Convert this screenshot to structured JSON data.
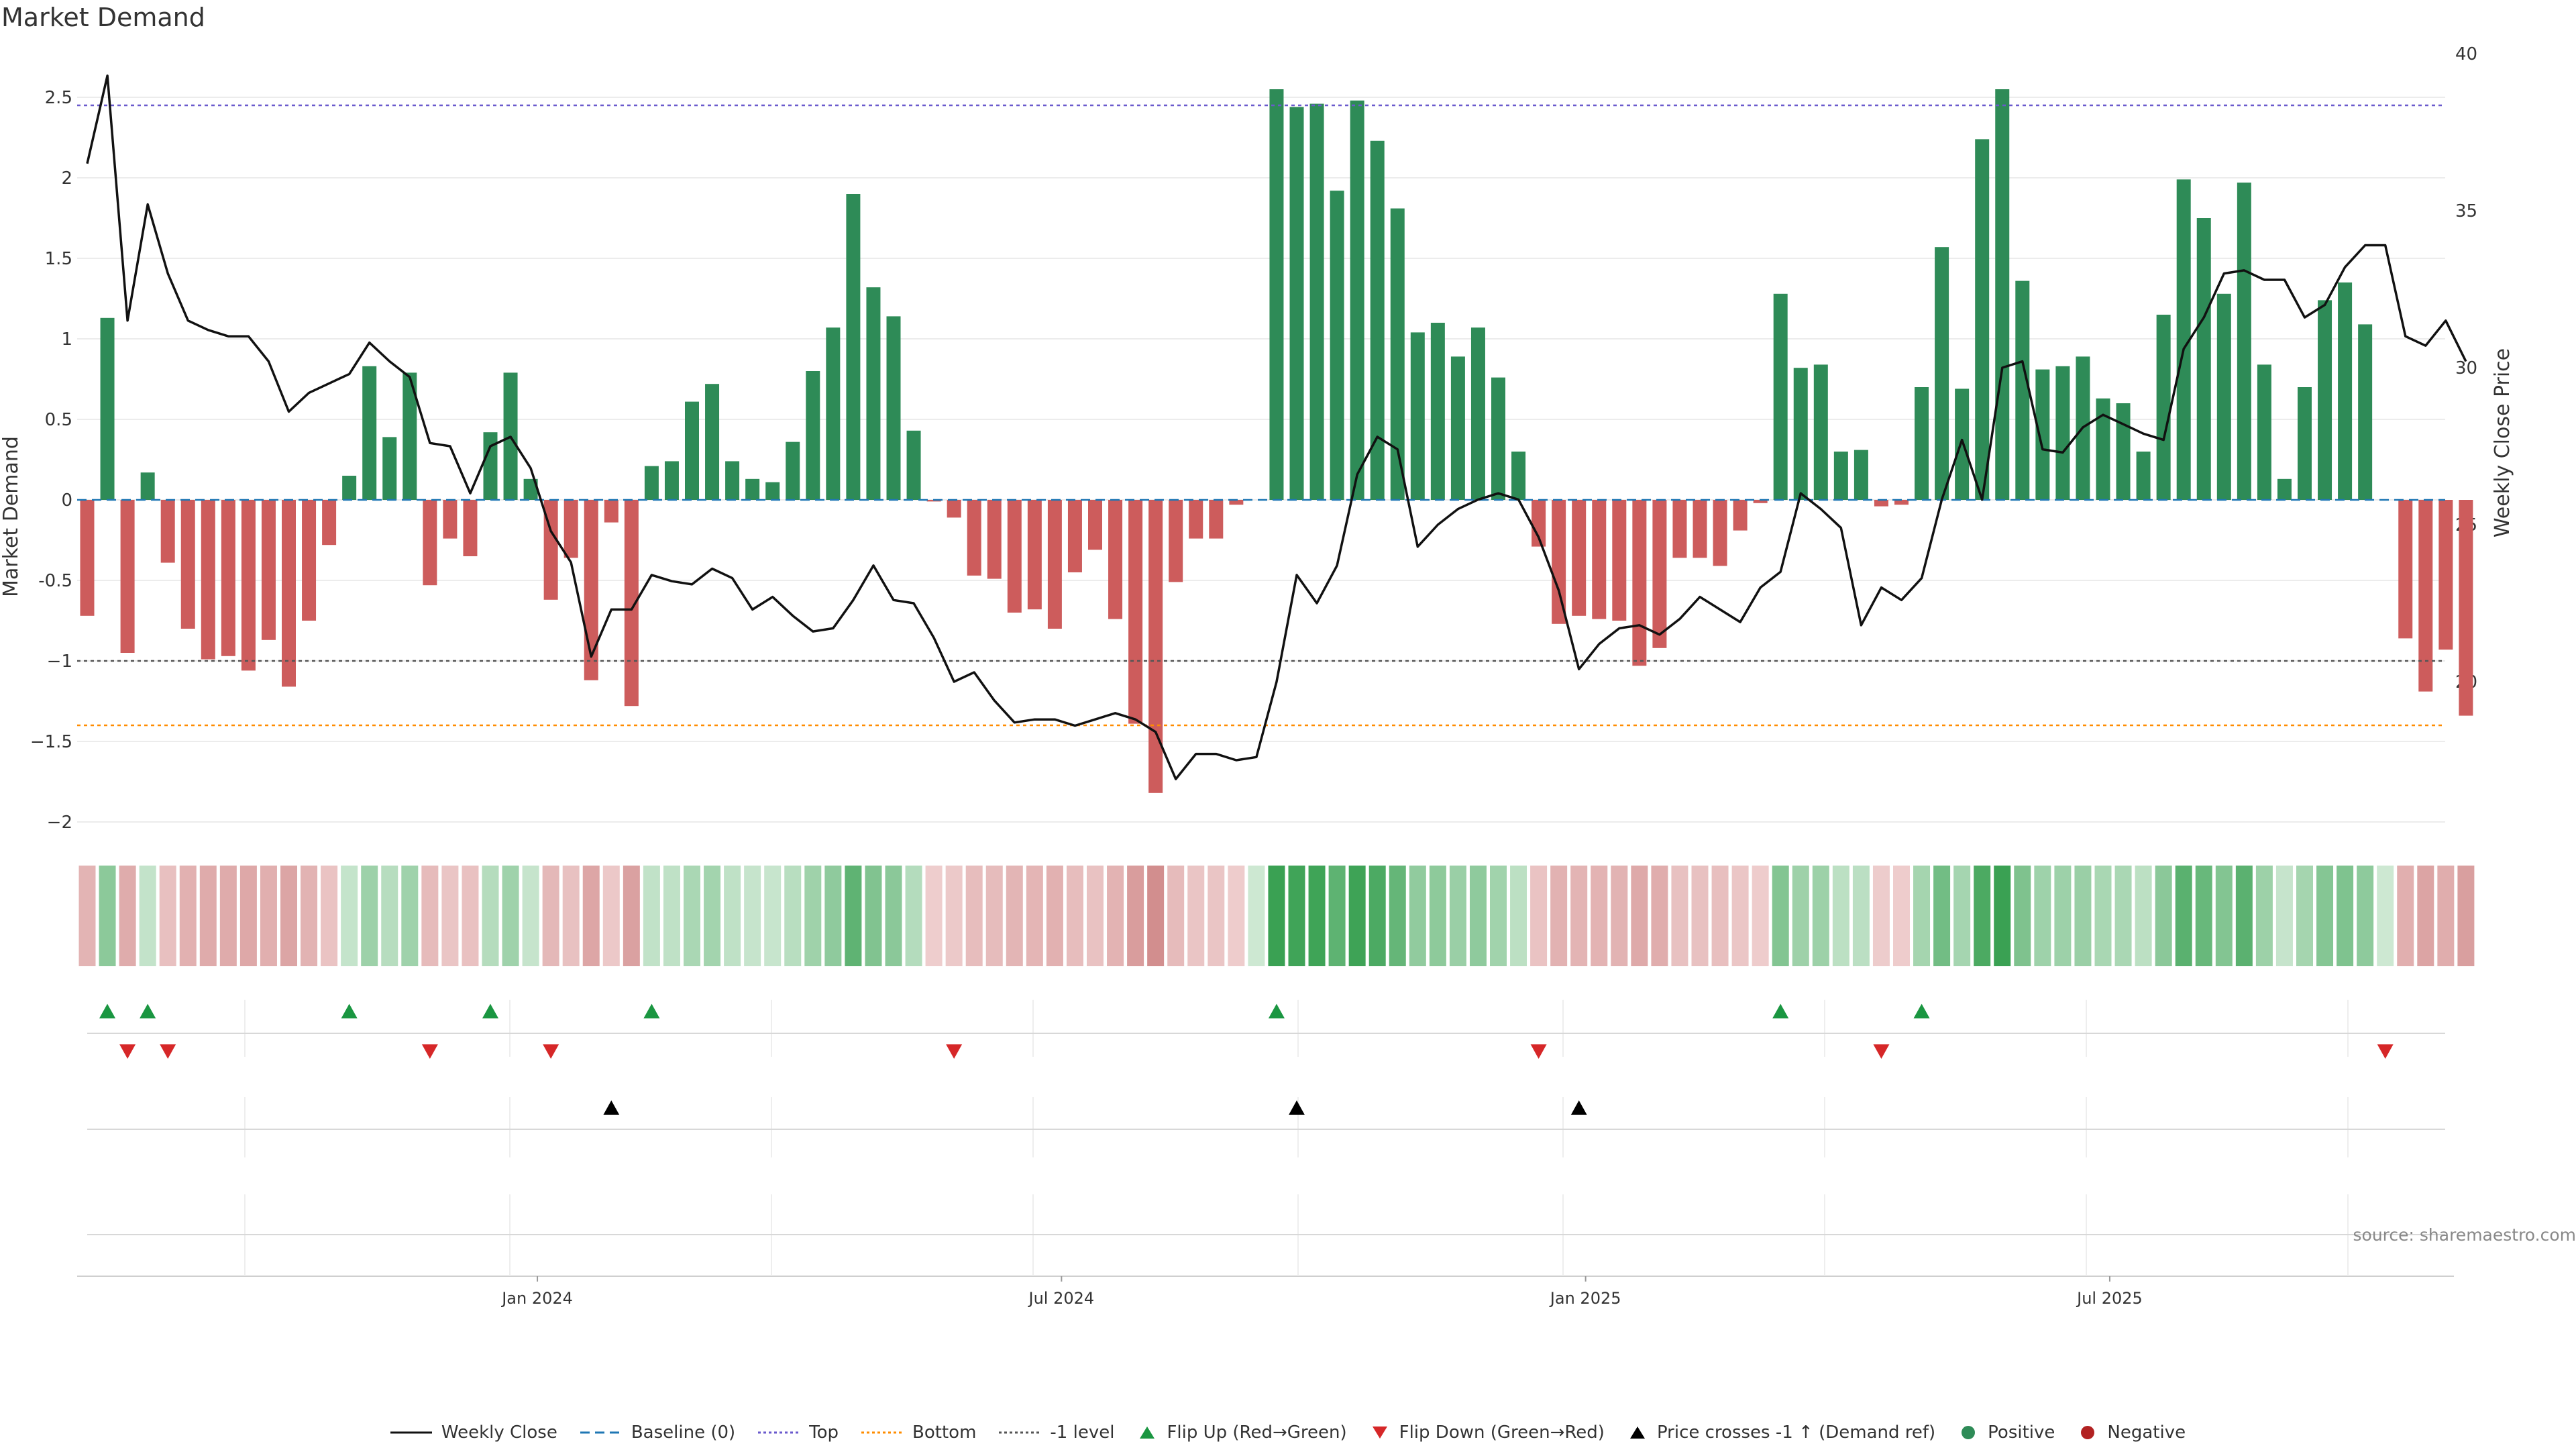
{
  "title": "Market Demand",
  "source": "source: sharemaestro.com",
  "colors": {
    "positive": "#2e8b57",
    "negative": "#cd5c5c",
    "top": "#6a5acd",
    "bottom": "#ff8c00",
    "minus1": "#555555",
    "baseline": "#1f77b4",
    "flip_up": "#1a9641",
    "flip_down": "#d62728",
    "cross": "#000000"
  },
  "chart_data": {
    "type": "bar",
    "title": "Market Demand",
    "ylabel": "Market Demand",
    "y2label": "Weekly Close Price",
    "ylim": [
      -2.0,
      2.6
    ],
    "y2lim": [
      15,
      40
    ],
    "yticks": [
      "2.5",
      "2",
      "1.5",
      "1",
      "0.5",
      "0",
      "-0.5",
      "−1",
      "−1.5",
      "−2"
    ],
    "yticks_values": [
      2.5,
      2,
      1.5,
      1,
      0.5,
      0,
      -0.5,
      -1,
      -1.5,
      -2
    ],
    "y2ticks": [
      "40",
      "35",
      "30",
      "25",
      "20"
    ],
    "y2ticks_values": [
      40,
      35,
      30,
      25,
      20
    ],
    "xticks": [
      "Jan 2024",
      "Jul 2024",
      "Jan 2025",
      "Jul 2025"
    ],
    "xticks_week": [
      21,
      47,
      73,
      99
    ],
    "reference_lines": {
      "top": 2.45,
      "bottom": -1.4,
      "minus1": -1.0,
      "baseline": 0
    },
    "grid": true,
    "demand": [
      -0.72,
      1.13,
      -0.95,
      0.17,
      -0.39,
      -0.8,
      -0.99,
      -0.97,
      -1.06,
      -0.87,
      -1.16,
      -0.75,
      -0.28,
      0.15,
      0.83,
      0.39,
      0.79,
      -0.53,
      -0.24,
      -0.35,
      0.42,
      0.79,
      0.13,
      -0.62,
      -0.36,
      -1.12,
      -0.14,
      -1.28,
      0.21,
      0.24,
      0.61,
      0.72,
      0.24,
      0.13,
      0.11,
      0.36,
      0.8,
      1.07,
      1.9,
      1.32,
      1.14,
      0.43,
      -0.01,
      -0.11,
      -0.47,
      -0.49,
      -0.7,
      -0.68,
      -0.8,
      -0.45,
      -0.31,
      -0.74,
      -1.39,
      -1.82,
      -0.51,
      -0.24,
      -0.24,
      -0.03,
      0.0,
      2.55,
      2.44,
      2.46,
      1.92,
      2.48,
      2.23,
      1.81,
      1.04,
      1.1,
      0.89,
      1.07,
      0.76,
      0.3,
      -0.29,
      -0.77,
      -0.72,
      -0.74,
      -0.75,
      -1.03,
      -0.92,
      -0.36,
      -0.36,
      -0.41,
      -0.19,
      -0.02,
      1.28,
      0.82,
      0.84,
      0.3,
      0.31,
      -0.04,
      -0.03,
      0.7,
      1.57,
      0.69,
      2.24,
      2.55,
      1.36,
      0.81,
      0.83,
      0.89,
      0.63,
      0.6,
      0.3,
      1.15,
      1.99,
      1.75,
      1.28,
      1.97,
      0.84,
      0.13,
      0.7,
      1.24,
      1.35,
      1.09,
      0.0,
      -0.86,
      -1.19,
      -0.93,
      -1.34
    ],
    "close": [
      36.5,
      39.3,
      31.5,
      35.2,
      33.0,
      31.5,
      31.2,
      31.0,
      31.0,
      30.2,
      28.6,
      29.2,
      29.5,
      29.8,
      30.8,
      30.2,
      29.7,
      27.6,
      27.5,
      26.0,
      27.5,
      27.8,
      26.8,
      24.8,
      23.8,
      20.8,
      22.3,
      22.3,
      23.4,
      23.2,
      23.1,
      23.6,
      23.3,
      22.3,
      22.7,
      22.1,
      21.6,
      21.7,
      22.6,
      23.7,
      22.6,
      22.5,
      21.4,
      20.0,
      20.3,
      19.4,
      18.7,
      18.8,
      18.8,
      18.6,
      18.8,
      19.0,
      18.8,
      18.4,
      16.9,
      17.7,
      17.7,
      17.5,
      17.6,
      20.0,
      23.4,
      22.5,
      23.7,
      26.6,
      27.8,
      27.4,
      24.3,
      25.0,
      25.5,
      25.8,
      26.0,
      25.8,
      24.6,
      22.9,
      20.4,
      21.2,
      21.7,
      21.8,
      21.5,
      22.0,
      22.7,
      22.3,
      21.9,
      23.0,
      23.5,
      26.0,
      25.5,
      24.9,
      21.8,
      23.0,
      22.6,
      23.3,
      25.8,
      27.7,
      25.8,
      30.0,
      30.2,
      27.4,
      27.3,
      28.1,
      28.5,
      28.2,
      27.9,
      27.7,
      30.6,
      31.6,
      33.0,
      33.1,
      32.8,
      32.8,
      31.6,
      32.0,
      33.2,
      33.9,
      33.9,
      31.0,
      30.7,
      31.5,
      30.2
    ],
    "flip_up_weeks": [
      1,
      3,
      13,
      20,
      28,
      59,
      84,
      91
    ],
    "flip_down_weeks": [
      2,
      4,
      17,
      23,
      43,
      72,
      89,
      114
    ],
    "cross_weeks": [
      26,
      60,
      74
    ],
    "series": [
      {
        "name": "Weekly Close"
      },
      {
        "name": "Baseline (0)"
      },
      {
        "name": "Top"
      },
      {
        "name": "Bottom"
      },
      {
        "name": "-1 level"
      }
    ]
  },
  "legend": [
    {
      "label": "Weekly Close",
      "kind": "line",
      "color": "#111111",
      "dash": ""
    },
    {
      "label": "Baseline (0)",
      "kind": "line",
      "color": "#1f77b4",
      "dash": "14,8"
    },
    {
      "label": "Top",
      "kind": "line",
      "color": "#6a5acd",
      "dash": "4,4"
    },
    {
      "label": "Bottom",
      "kind": "line",
      "color": "#ff8c00",
      "dash": "4,4"
    },
    {
      "label": "-1 level",
      "kind": "line",
      "color": "#555555",
      "dash": "4,4"
    },
    {
      "label": "Flip Up (Red→Green)",
      "kind": "tri-up",
      "color": "#1a9641"
    },
    {
      "label": "Flip Down (Green→Red)",
      "kind": "tri-down",
      "color": "#d62728"
    },
    {
      "label": "Price crosses -1 ↑ (Demand ref)",
      "kind": "tri-up",
      "color": "#000000"
    },
    {
      "label": "Positive",
      "kind": "dot",
      "color": "#2e8b57"
    },
    {
      "label": "Negative",
      "kind": "dot",
      "color": "#b22222"
    }
  ]
}
